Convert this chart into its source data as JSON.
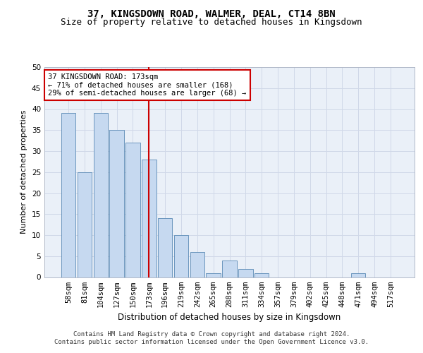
{
  "title1": "37, KINGSDOWN ROAD, WALMER, DEAL, CT14 8BN",
  "title2": "Size of property relative to detached houses in Kingsdown",
  "xlabel": "Distribution of detached houses by size in Kingsdown",
  "ylabel": "Number of detached properties",
  "categories": [
    "58sqm",
    "81sqm",
    "104sqm",
    "127sqm",
    "150sqm",
    "173sqm",
    "196sqm",
    "219sqm",
    "242sqm",
    "265sqm",
    "288sqm",
    "311sqm",
    "334sqm",
    "357sqm",
    "379sqm",
    "402sqm",
    "425sqm",
    "448sqm",
    "471sqm",
    "494sqm",
    "517sqm"
  ],
  "values": [
    39,
    25,
    39,
    35,
    32,
    28,
    14,
    10,
    6,
    1,
    4,
    2,
    1,
    0,
    0,
    0,
    0,
    0,
    1,
    0,
    0
  ],
  "bar_color": "#c6d9f0",
  "bar_edge_color": "#5a8ab5",
  "vline_x_idx": 5,
  "vline_color": "#cc0000",
  "annotation_text": "37 KINGSDOWN ROAD: 173sqm\n← 71% of detached houses are smaller (168)\n29% of semi-detached houses are larger (68) →",
  "annotation_box_color": "#cc0000",
  "ylim": [
    0,
    50
  ],
  "yticks": [
    0,
    5,
    10,
    15,
    20,
    25,
    30,
    35,
    40,
    45,
    50
  ],
  "grid_color": "#d0d8e8",
  "background_color": "#eaf0f8",
  "footer_line1": "Contains HM Land Registry data © Crown copyright and database right 2024.",
  "footer_line2": "Contains public sector information licensed under the Open Government Licence v3.0.",
  "title1_fontsize": 10,
  "title2_fontsize": 9,
  "xlabel_fontsize": 8.5,
  "ylabel_fontsize": 8,
  "tick_fontsize": 7.5,
  "annotation_fontsize": 7.5,
  "footer_fontsize": 6.5
}
